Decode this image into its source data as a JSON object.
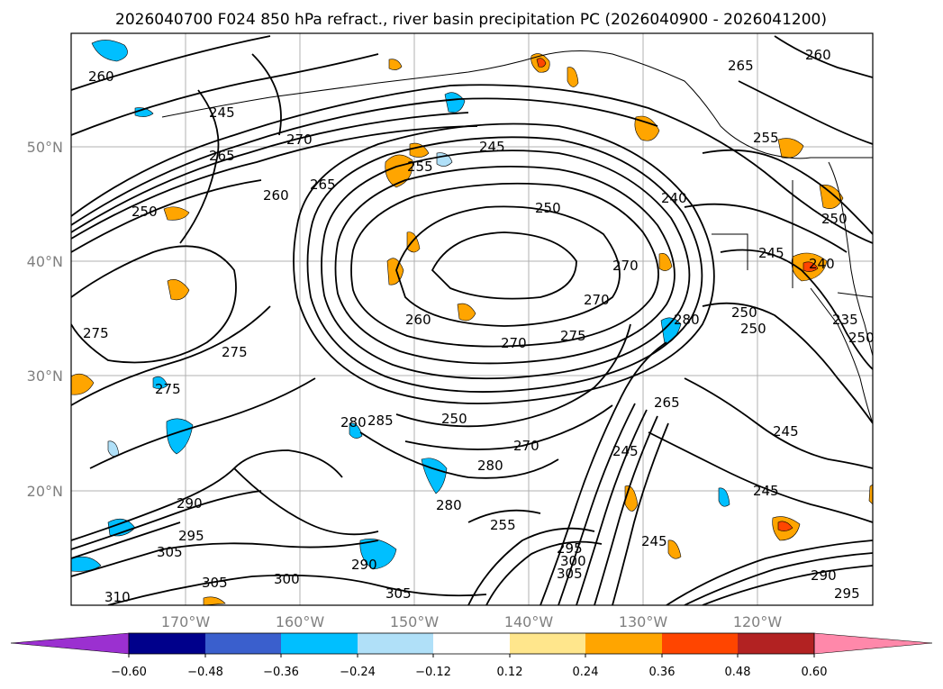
{
  "title": "2026040700 F024 850 hPa refract., river basin precipitation PC (2026040900 - 2026041200)",
  "latitude_labels": [
    "50°N",
    "40°N",
    "30°N",
    "20°N"
  ],
  "longitude_labels": [
    "170°W",
    "160°W",
    "150°W",
    "140°W",
    "130°W",
    "120°W"
  ],
  "colorbar": {
    "colors": [
      "#9b30d0",
      "#00008b",
      "#3a5fcd",
      "#00bfff",
      "#b0e0f8",
      "#ffffff",
      "#ffe68c",
      "#ffa500",
      "#ff4500",
      "#b22222",
      "#ff88aa"
    ],
    "tick_labels": [
      "−0.60",
      "−0.48",
      "−0.36",
      "−0.24",
      "−0.12",
      "0.12",
      "0.24",
      "0.36",
      "0.48",
      "0.60"
    ]
  },
  "contour_labels": [
    "260",
    "265",
    "270",
    "245",
    "260",
    "265",
    "255",
    "250",
    "240",
    "275",
    "275",
    "275",
    "270",
    "260",
    "270",
    "280",
    "250",
    "270",
    "275",
    "265",
    "280",
    "285",
    "250",
    "280",
    "270",
    "255",
    "290",
    "295",
    "305",
    "305",
    "310",
    "300",
    "290",
    "305",
    "245",
    "295",
    "300",
    "305",
    "245",
    "265",
    "260",
    "255",
    "250",
    "245",
    "240",
    "250",
    "235",
    "250",
    "245",
    "290",
    "295",
    "250",
    "245",
    "245",
    "280"
  ]
}
